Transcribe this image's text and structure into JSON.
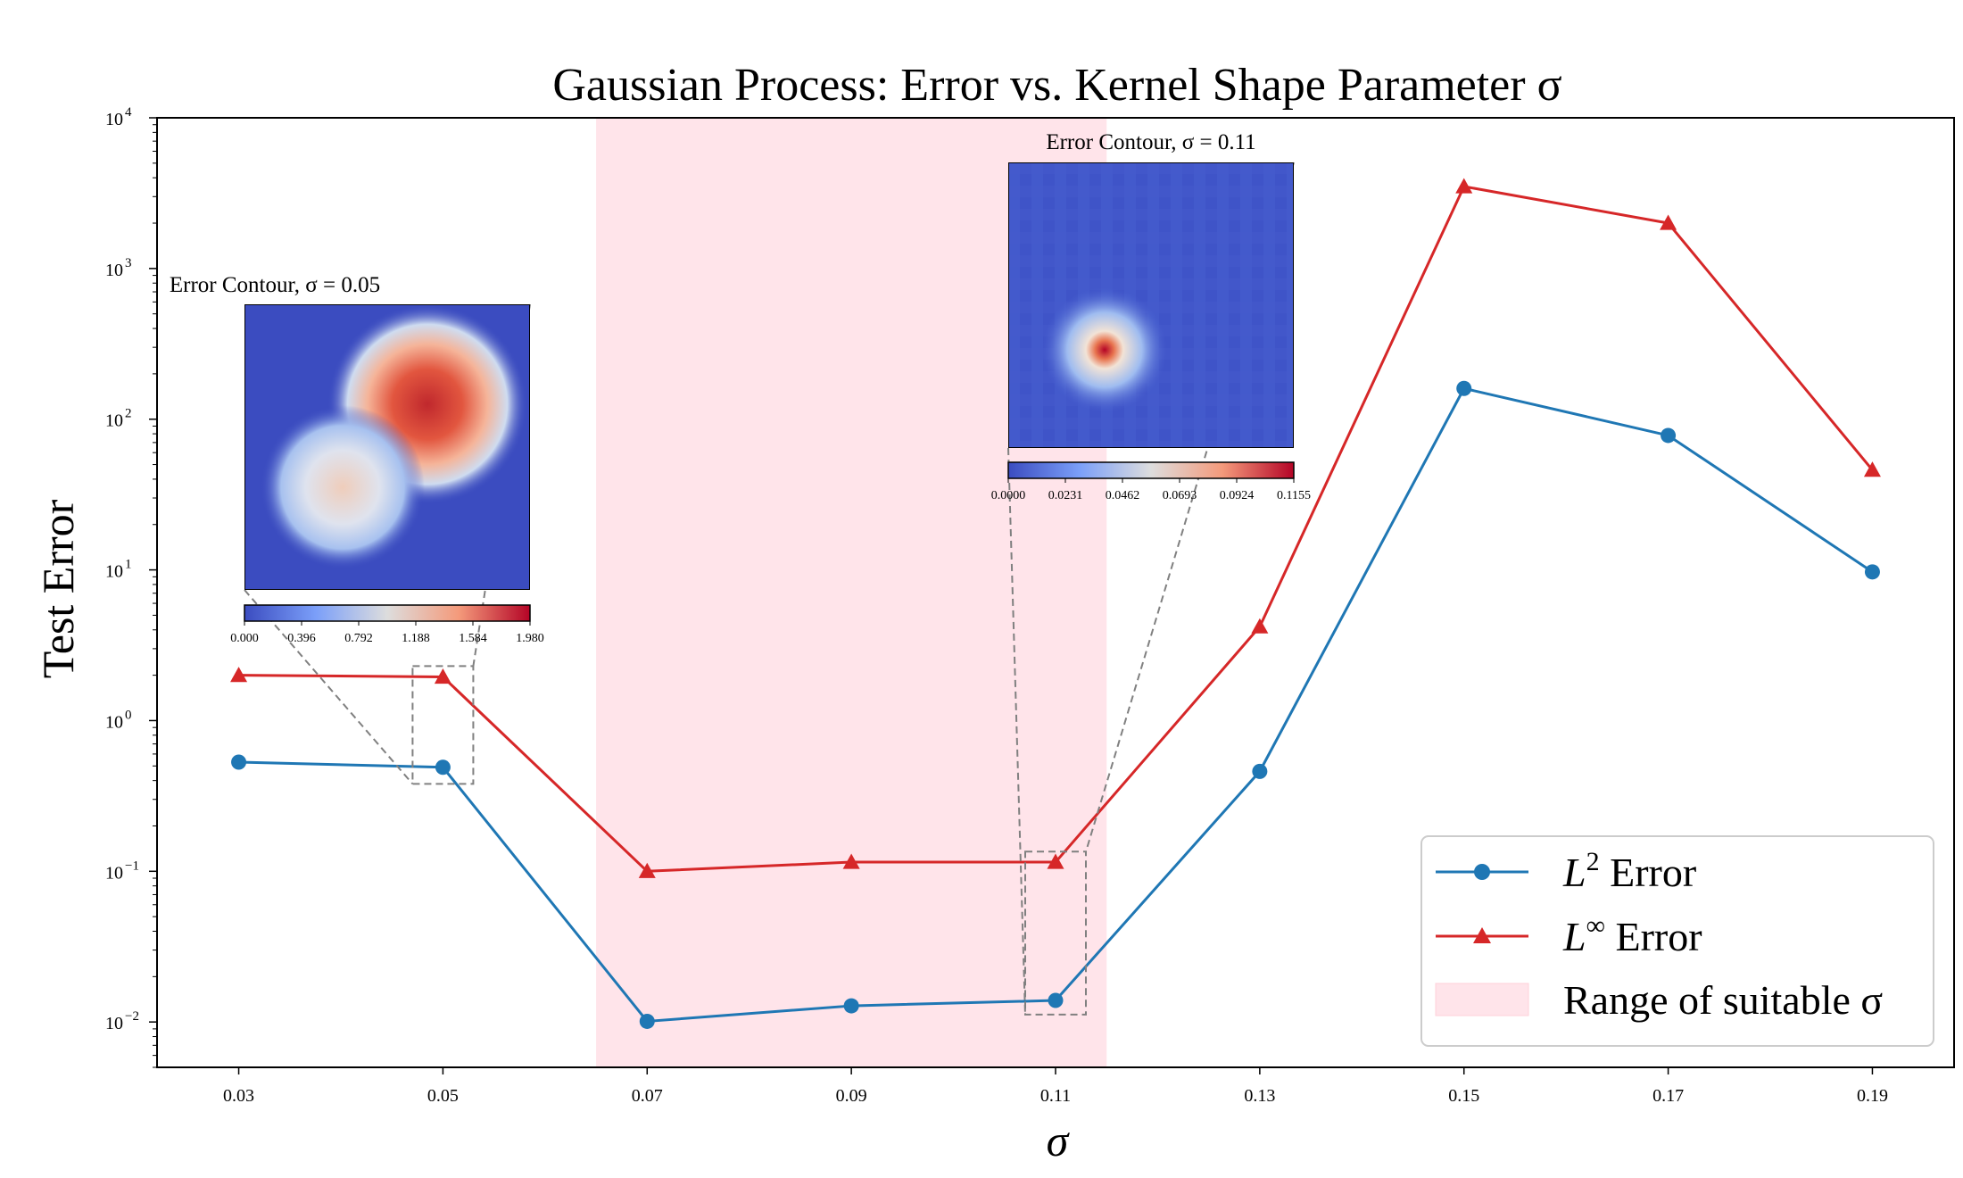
{
  "chart_data": {
    "type": "line",
    "title": "Gaussian Process: Error vs. Kernel Shape Parameter σ",
    "xlabel": "σ",
    "ylabel": "Test Error",
    "yscale": "log",
    "ylim": [
      0.005,
      10000
    ],
    "xlim": [
      0.022,
      0.198
    ],
    "x": [
      0.03,
      0.05,
      0.07,
      0.09,
      0.11,
      0.13,
      0.15,
      0.17,
      0.19
    ],
    "x_tick_labels": [
      "0.03",
      "0.05",
      "0.07",
      "0.09",
      "0.11",
      "0.13",
      "0.15",
      "0.17",
      "0.19"
    ],
    "y_ticks": [
      {
        "value": 0.01,
        "base": "10",
        "exp": "−2"
      },
      {
        "value": 0.1,
        "base": "10",
        "exp": "−1"
      },
      {
        "value": 1,
        "base": "10",
        "exp": "0"
      },
      {
        "value": 10,
        "base": "10",
        "exp": "1"
      },
      {
        "value": 100,
        "base": "10",
        "exp": "2"
      },
      {
        "value": 1000,
        "base": "10",
        "exp": "3"
      },
      {
        "value": 10000,
        "base": "10",
        "exp": "4"
      }
    ],
    "series": [
      {
        "name": "L² Error",
        "label_main": "L",
        "label_sup": "2",
        "label_rest": " Error",
        "color": "#1f77b4",
        "marker": "circle",
        "values": [
          0.53,
          0.49,
          0.0101,
          0.0128,
          0.0139,
          0.46,
          160,
          78,
          9.7
        ]
      },
      {
        "name": "L∞ Error",
        "label_main": "L",
        "label_sup": "∞",
        "label_rest": " Error",
        "color": "#d62728",
        "marker": "triangle",
        "values": [
          2.0,
          1.95,
          0.1,
          0.115,
          0.115,
          4.2,
          3500,
          2000,
          46
        ]
      }
    ],
    "shaded_region": {
      "x_range": [
        0.065,
        0.115
      ],
      "color": "#ffe4ea",
      "label": "Range of suitable σ"
    },
    "insets": [
      {
        "title": "Error Contour, σ = 0.05",
        "target_x": 0.05,
        "colorbar_ticks": [
          "0.000",
          "0.396",
          "0.792",
          "1.188",
          "1.584",
          "1.980"
        ]
      },
      {
        "title": "Error Contour, σ = 0.11",
        "target_x": 0.11,
        "colorbar_ticks": [
          "0.0000",
          "0.0231",
          "0.0462",
          "0.0693",
          "0.0924",
          "0.1155"
        ]
      }
    ],
    "legend_position": "lower-right",
    "colors": {
      "low": "#3b4cc0",
      "mid": "#dddddd",
      "high": "#b40426"
    }
  }
}
